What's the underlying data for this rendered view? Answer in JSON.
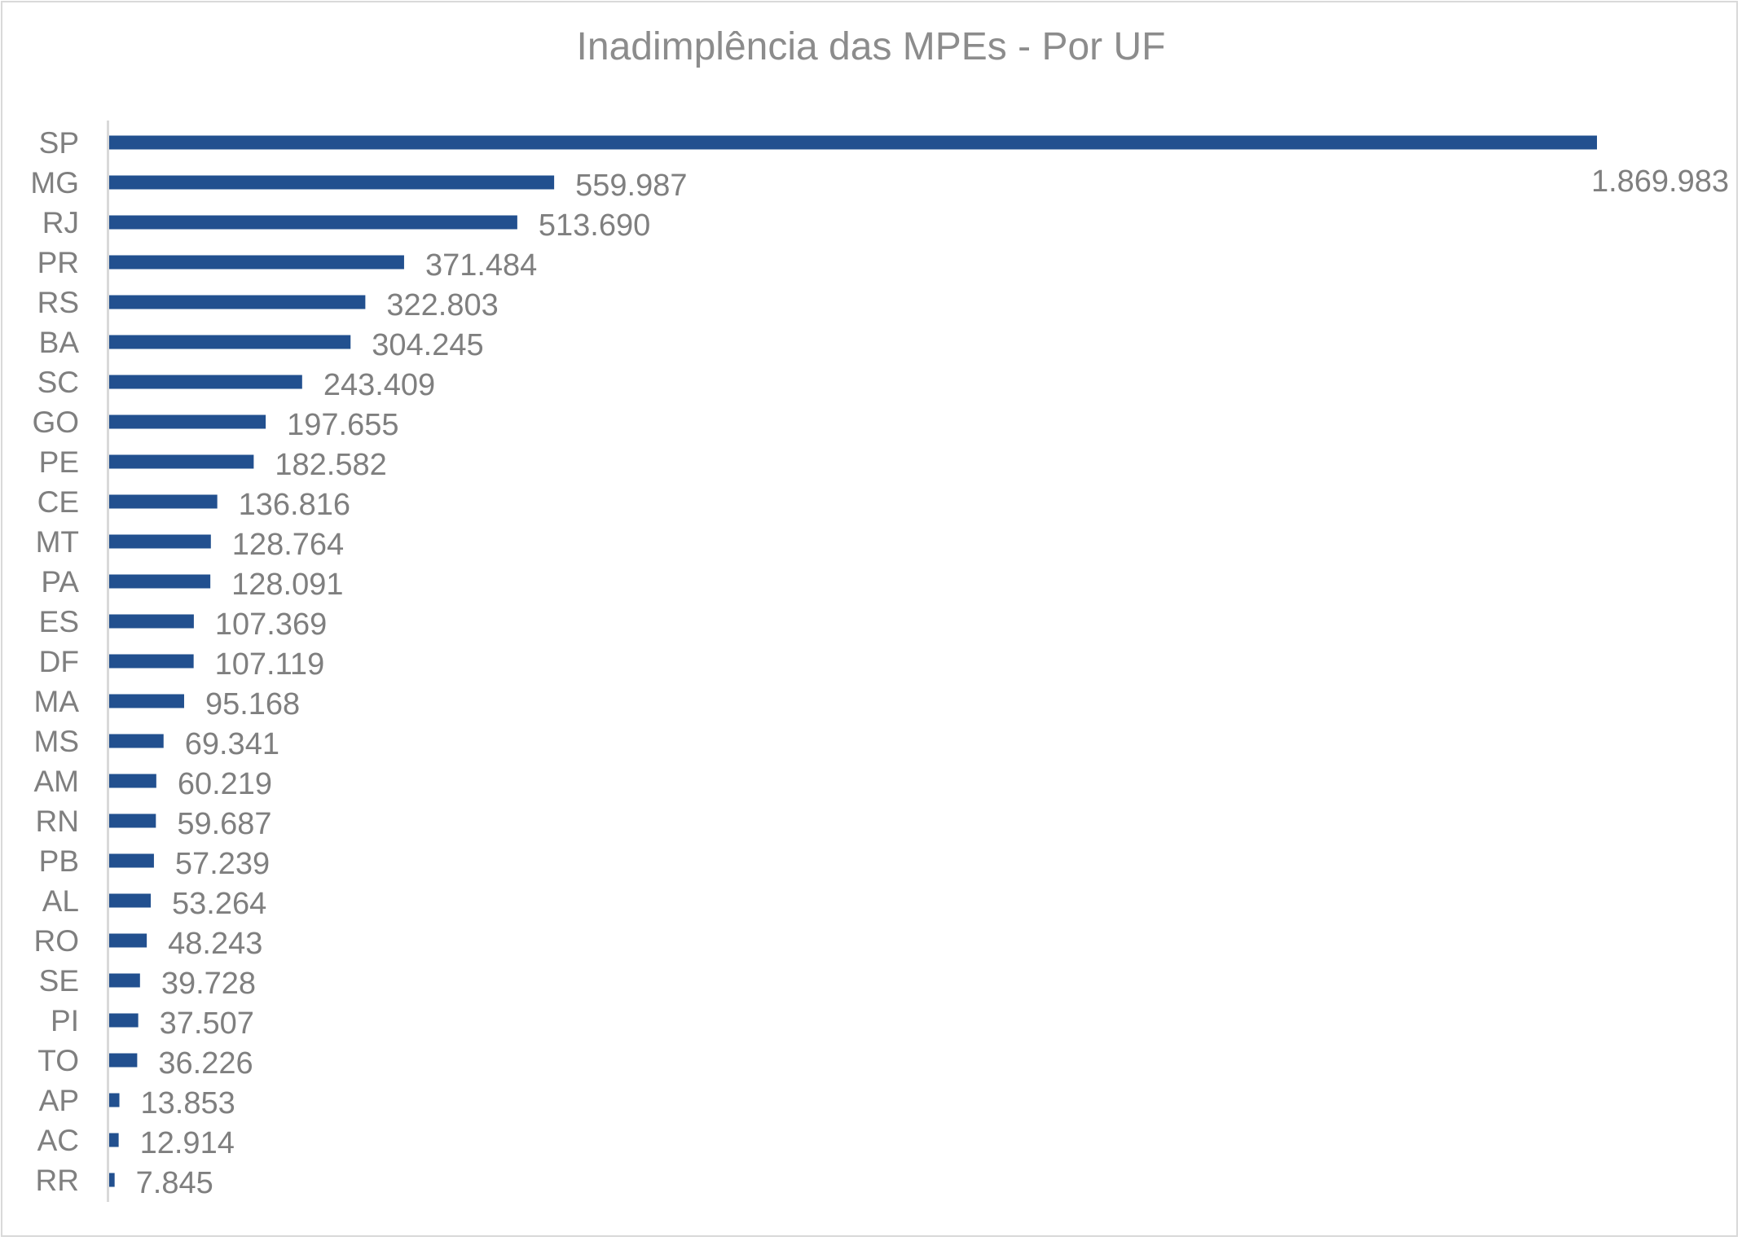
{
  "chart_data": {
    "type": "bar",
    "orientation": "horizontal",
    "title": "Inadimplência das MPEs - Por UF",
    "xlabel": "",
    "ylabel": "",
    "categories": [
      "SP",
      "MG",
      "RJ",
      "PR",
      "RS",
      "BA",
      "SC",
      "GO",
      "PE",
      "CE",
      "MT",
      "PA",
      "ES",
      "DF",
      "MA",
      "MS",
      "AM",
      "RN",
      "PB",
      "AL",
      "RO",
      "SE",
      "PI",
      "TO",
      "AP",
      "AC",
      "RR"
    ],
    "values": [
      1869983,
      559987,
      513690,
      371484,
      322803,
      304245,
      243409,
      197655,
      182582,
      136816,
      128764,
      128091,
      107369,
      107119,
      95168,
      69341,
      60219,
      59687,
      57239,
      53264,
      48243,
      39728,
      37507,
      36226,
      13853,
      12914,
      7845
    ],
    "value_labels": [
      "1.869.983",
      "559.987",
      "513.690",
      "371.484",
      "322.803",
      "304.245",
      "243.409",
      "197.655",
      "182.582",
      "136.816",
      "128.764",
      "128.091",
      "107.369",
      "107.119",
      "95.168",
      "69.341",
      "60.219",
      "59.687",
      "57.239",
      "53.264",
      "48.243",
      "39.728",
      "37.507",
      "36.226",
      "13.853",
      "12.914",
      "7.845"
    ],
    "xlim": [
      0,
      1869983
    ],
    "grid": false,
    "legend": "none",
    "bar_color": "#22508f",
    "axis_color": "#d9d9d9",
    "text_color": "#7f7f7f"
  }
}
